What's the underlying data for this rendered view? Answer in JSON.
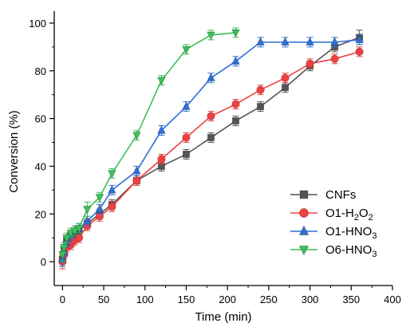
{
  "chart_data": {
    "type": "line",
    "xlabel": "Time (min)",
    "ylabel": "Conversion (%)",
    "xlim": [
      -10,
      400
    ],
    "ylim": [
      -10,
      105
    ],
    "xticks": [
      0,
      50,
      100,
      150,
      200,
      250,
      300,
      350,
      400
    ],
    "yticks": [
      0,
      20,
      40,
      60,
      80,
      100
    ],
    "grid": false,
    "legend_position": "bottom-right",
    "series": [
      {
        "name": "CNFs",
        "label_main": "CNFs",
        "label_sub": "",
        "label_tail": "",
        "marker": "square",
        "color": "#555555",
        "x": [
          0,
          2,
          5,
          10,
          15,
          20,
          30,
          45,
          60,
          90,
          120,
          150,
          180,
          210,
          240,
          270,
          300,
          330,
          360
        ],
        "y": [
          1,
          5,
          9,
          11,
          12,
          13,
          16,
          20,
          24,
          34,
          40,
          45,
          52,
          59,
          65,
          73,
          82,
          90,
          94
        ],
        "err": [
          3,
          3,
          2,
          2,
          2,
          2,
          2,
          2,
          2,
          2,
          2,
          2,
          2,
          2,
          2,
          2,
          2,
          2,
          3
        ]
      },
      {
        "name": "O1-H2O2",
        "label_main": "O1-H",
        "label_sub": "2",
        "label_tail": "O",
        "label_sub2": "2",
        "marker": "circle",
        "color": "#f04040",
        "x": [
          0,
          2,
          5,
          10,
          15,
          20,
          30,
          45,
          60,
          90,
          120,
          150,
          180,
          210,
          240,
          270,
          300,
          330,
          360
        ],
        "y": [
          0,
          3,
          6,
          7,
          9,
          10,
          15,
          19,
          23,
          34,
          43,
          52,
          61,
          66,
          72,
          77,
          83,
          85,
          88
        ],
        "err": [
          3,
          2,
          2,
          2,
          2,
          2,
          2,
          2,
          2,
          2,
          2,
          2,
          2,
          2,
          2,
          2,
          2,
          2,
          2
        ]
      },
      {
        "name": "O1-HNO3",
        "label_main": "O1-HNO",
        "label_sub": "3",
        "label_tail": "",
        "marker": "triangle-up",
        "color": "#2f6fd8",
        "x": [
          0,
          2,
          5,
          10,
          15,
          20,
          30,
          45,
          60,
          90,
          120,
          150,
          180,
          210,
          240,
          270,
          300,
          330,
          360
        ],
        "y": [
          1,
          4,
          8,
          11,
          13,
          14,
          17,
          22,
          30,
          38,
          55,
          65,
          77,
          84,
          92,
          92,
          92,
          92,
          93
        ],
        "err": [
          3,
          2,
          2,
          2,
          2,
          2,
          2,
          2,
          2,
          2,
          2,
          2,
          2,
          2,
          2,
          2,
          2,
          2,
          2
        ]
      },
      {
        "name": "O6-HNO3",
        "label_main": "O6-HNO",
        "label_sub": "3",
        "label_tail": "",
        "marker": "triangle-down",
        "color": "#3cbf5a",
        "x": [
          0,
          2,
          5,
          10,
          15,
          20,
          30,
          45,
          60,
          90,
          120,
          150,
          180,
          210
        ],
        "y": [
          3,
          6,
          10,
          12,
          13,
          14,
          22,
          27,
          37,
          53,
          76,
          89,
          95,
          96
        ],
        "err": [
          3,
          2,
          2,
          2,
          2,
          2,
          3,
          2,
          2,
          2,
          2,
          2,
          2,
          2
        ]
      }
    ]
  }
}
